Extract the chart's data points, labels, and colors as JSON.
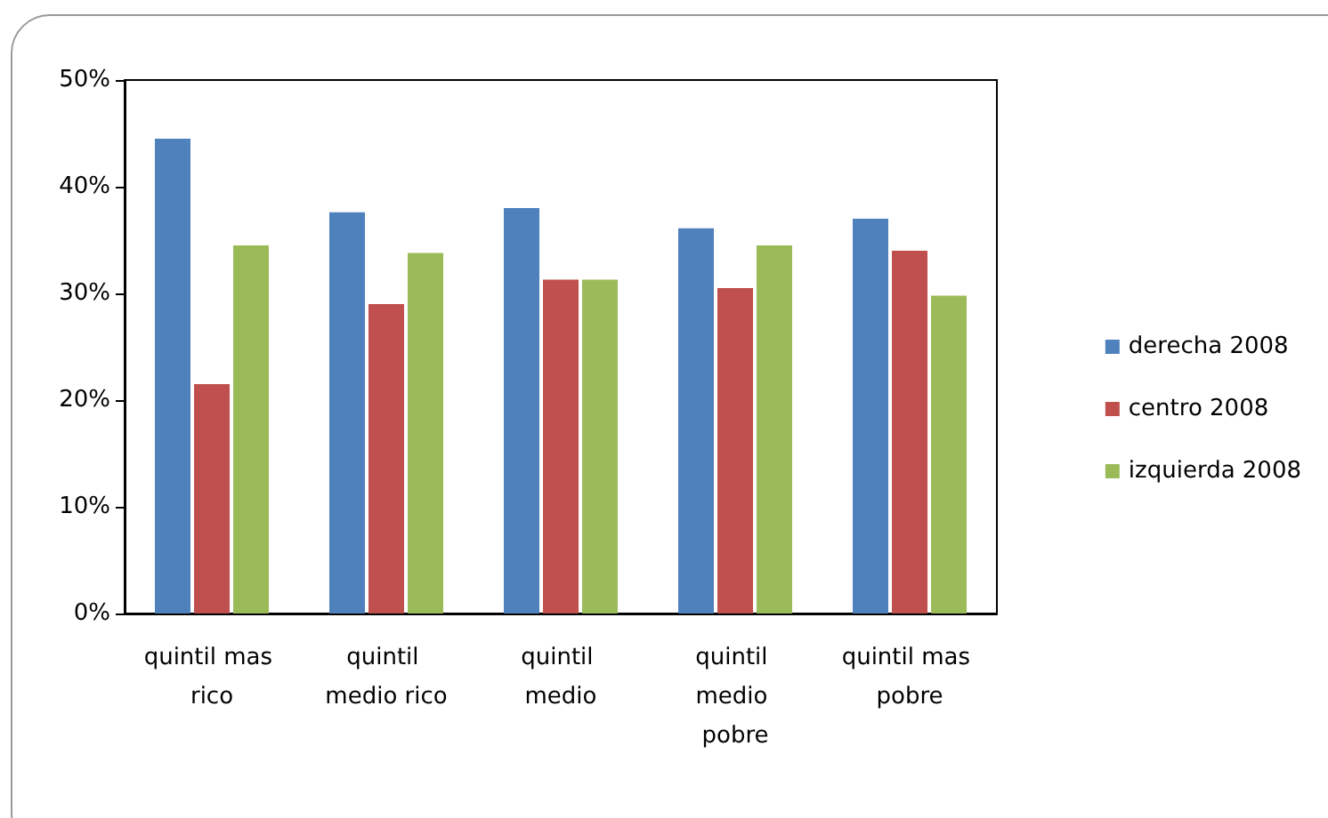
{
  "chart_data": {
    "type": "bar",
    "categories": [
      "quintil mas rico",
      "quintil medio rico",
      "quintil medio",
      "quintil medio pobre",
      "quintil mas pobre"
    ],
    "series": [
      {
        "name": "derecha 2008",
        "color": "#4f81bd",
        "values": [
          44.5,
          37.6,
          38,
          36.1,
          37
        ]
      },
      {
        "name": "centro 2008",
        "color": "#c0504d",
        "values": [
          21.5,
          29,
          31.3,
          30.5,
          34
        ]
      },
      {
        "name": "izquierda 2008",
        "color": "#9bbb59",
        "values": [
          34.5,
          33.8,
          31.3,
          34.5,
          29.8
        ]
      }
    ],
    "ylim": [
      0,
      50
    ],
    "yticks": [
      {
        "value": 0,
        "label": "0%"
      },
      {
        "value": 10,
        "label": "10%"
      },
      {
        "value": 20,
        "label": "20%"
      },
      {
        "value": 30,
        "label": "30%"
      },
      {
        "value": 40,
        "label": "40%"
      },
      {
        "value": 50,
        "label": "50%"
      }
    ],
    "grid": false,
    "legend": "right"
  }
}
